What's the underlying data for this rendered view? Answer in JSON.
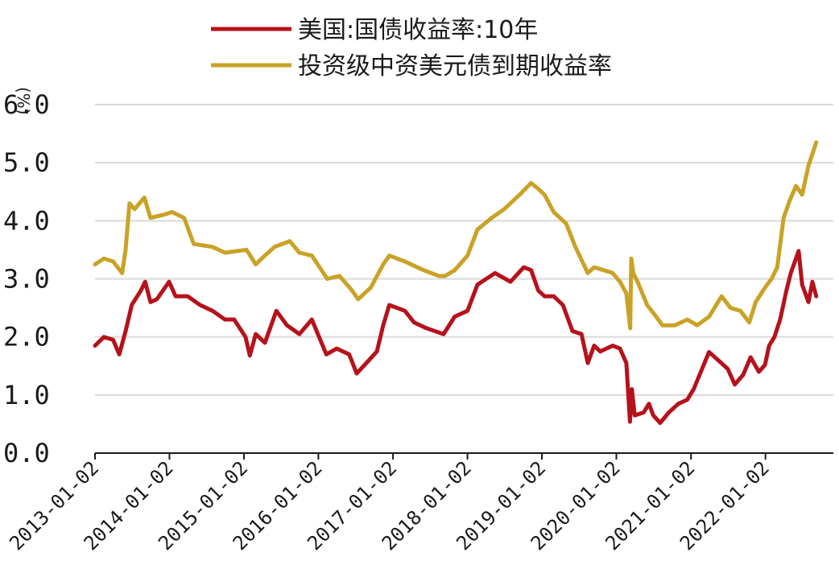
{
  "chart_data": {
    "type": "line",
    "ylabel": "(%)",
    "ylim": [
      0,
      6
    ],
    "y_ticks": [
      "0.0",
      "1.0",
      "2.0",
      "3.0",
      "4.0",
      "5.0",
      "6.0"
    ],
    "x_ticks": [
      "2013-01-02",
      "2014-01-02",
      "2015-01-02",
      "2016-01-02",
      "2017-01-02",
      "2018-01-02",
      "2019-01-02",
      "2020-01-02",
      "2021-01-02",
      "2022-01-02"
    ],
    "grid": "horizontal",
    "legend_position": "top",
    "series": [
      {
        "name": "美国:国债收益率:10年",
        "color": "#b5121b",
        "points": [
          [
            "2013-01-02",
            1.85
          ],
          [
            "2013-02-15",
            2.0
          ],
          [
            "2013-04-01",
            1.95
          ],
          [
            "2013-05-01",
            1.7
          ],
          [
            "2013-06-01",
            2.1
          ],
          [
            "2013-07-01",
            2.55
          ],
          [
            "2013-08-15",
            2.8
          ],
          [
            "2013-09-05",
            2.95
          ],
          [
            "2013-10-01",
            2.6
          ],
          [
            "2013-11-01",
            2.65
          ],
          [
            "2013-12-31",
            2.95
          ],
          [
            "2014-02-01",
            2.7
          ],
          [
            "2014-04-01",
            2.7
          ],
          [
            "2014-06-01",
            2.55
          ],
          [
            "2014-08-01",
            2.45
          ],
          [
            "2014-10-01",
            2.3
          ],
          [
            "2014-11-15",
            2.3
          ],
          [
            "2015-01-10",
            2.0
          ],
          [
            "2015-01-31",
            1.68
          ],
          [
            "2015-03-01",
            2.05
          ],
          [
            "2015-04-15",
            1.9
          ],
          [
            "2015-06-10",
            2.45
          ],
          [
            "2015-08-01",
            2.2
          ],
          [
            "2015-10-01",
            2.05
          ],
          [
            "2015-12-01",
            2.3
          ],
          [
            "2016-02-10",
            1.7
          ],
          [
            "2016-04-01",
            1.8
          ],
          [
            "2016-06-01",
            1.7
          ],
          [
            "2016-07-08",
            1.37
          ],
          [
            "2016-09-01",
            1.58
          ],
          [
            "2016-10-15",
            1.75
          ],
          [
            "2016-11-15",
            2.2
          ],
          [
            "2016-12-15",
            2.55
          ],
          [
            "2017-03-01",
            2.45
          ],
          [
            "2017-04-15",
            2.25
          ],
          [
            "2017-06-15",
            2.15
          ],
          [
            "2017-09-07",
            2.05
          ],
          [
            "2017-11-01",
            2.35
          ],
          [
            "2018-01-02",
            2.45
          ],
          [
            "2018-02-20",
            2.9
          ],
          [
            "2018-05-17",
            3.1
          ],
          [
            "2018-08-01",
            2.95
          ],
          [
            "2018-10-05",
            3.2
          ],
          [
            "2018-11-10",
            3.15
          ],
          [
            "2018-12-15",
            2.8
          ],
          [
            "2019-01-15",
            2.7
          ],
          [
            "2019-03-01",
            2.7
          ],
          [
            "2019-04-15",
            2.55
          ],
          [
            "2019-06-01",
            2.1
          ],
          [
            "2019-07-15",
            2.05
          ],
          [
            "2019-08-15",
            1.55
          ],
          [
            "2019-09-15",
            1.85
          ],
          [
            "2019-10-15",
            1.75
          ],
          [
            "2019-12-15",
            1.85
          ],
          [
            "2020-01-20",
            1.8
          ],
          [
            "2020-02-20",
            1.55
          ],
          [
            "2020-03-09",
            0.54
          ],
          [
            "2020-03-18",
            1.1
          ],
          [
            "2020-04-01",
            0.65
          ],
          [
            "2020-05-15",
            0.7
          ],
          [
            "2020-06-10",
            0.85
          ],
          [
            "2020-07-01",
            0.65
          ],
          [
            "2020-08-04",
            0.52
          ],
          [
            "2020-09-15",
            0.7
          ],
          [
            "2020-11-01",
            0.85
          ],
          [
            "2020-12-15",
            0.92
          ],
          [
            "2021-01-15",
            1.1
          ],
          [
            "2021-02-25",
            1.45
          ],
          [
            "2021-03-31",
            1.74
          ],
          [
            "2021-05-15",
            1.6
          ],
          [
            "2021-07-01",
            1.45
          ],
          [
            "2021-08-05",
            1.18
          ],
          [
            "2021-09-15",
            1.35
          ],
          [
            "2021-10-21",
            1.65
          ],
          [
            "2021-12-01",
            1.4
          ],
          [
            "2021-12-31",
            1.52
          ],
          [
            "2022-01-20",
            1.85
          ],
          [
            "2022-02-15",
            2.0
          ],
          [
            "2022-03-15",
            2.3
          ],
          [
            "2022-04-15",
            2.8
          ],
          [
            "2022-05-06",
            3.1
          ],
          [
            "2022-06-14",
            3.48
          ],
          [
            "2022-07-01",
            2.9
          ],
          [
            "2022-08-01",
            2.6
          ],
          [
            "2022-08-20",
            2.95
          ],
          [
            "2022-09-08",
            2.7
          ]
        ]
      },
      {
        "name": "投资级中资美元债到期收益率",
        "color": "#c9a227",
        "points": [
          [
            "2013-01-02",
            3.25
          ],
          [
            "2013-02-15",
            3.35
          ],
          [
            "2013-04-01",
            3.3
          ],
          [
            "2013-05-15",
            3.1
          ],
          [
            "2013-06-01",
            3.5
          ],
          [
            "2013-06-20",
            4.3
          ],
          [
            "2013-07-15",
            4.2
          ],
          [
            "2013-09-01",
            4.4
          ],
          [
            "2013-10-01",
            4.05
          ],
          [
            "2013-12-01",
            4.1
          ],
          [
            "2014-01-15",
            4.15
          ],
          [
            "2014-03-15",
            4.05
          ],
          [
            "2014-05-01",
            3.6
          ],
          [
            "2014-08-01",
            3.55
          ],
          [
            "2014-10-01",
            3.45
          ],
          [
            "2015-01-15",
            3.5
          ],
          [
            "2015-03-01",
            3.25
          ],
          [
            "2015-04-15",
            3.4
          ],
          [
            "2015-06-01",
            3.55
          ],
          [
            "2015-08-15",
            3.65
          ],
          [
            "2015-10-01",
            3.45
          ],
          [
            "2015-12-01",
            3.4
          ],
          [
            "2016-02-15",
            3.0
          ],
          [
            "2016-04-15",
            3.05
          ],
          [
            "2016-06-15",
            2.8
          ],
          [
            "2016-07-15",
            2.65
          ],
          [
            "2016-09-15",
            2.85
          ],
          [
            "2016-11-15",
            3.25
          ],
          [
            "2016-12-15",
            3.4
          ],
          [
            "2017-03-01",
            3.3
          ],
          [
            "2017-06-01",
            3.15
          ],
          [
            "2017-08-15",
            3.05
          ],
          [
            "2017-09-15",
            3.05
          ],
          [
            "2017-11-01",
            3.15
          ],
          [
            "2018-01-02",
            3.4
          ],
          [
            "2018-02-20",
            3.85
          ],
          [
            "2018-05-01",
            4.05
          ],
          [
            "2018-07-01",
            4.2
          ],
          [
            "2018-09-15",
            4.45
          ],
          [
            "2018-11-10",
            4.65
          ],
          [
            "2018-12-15",
            4.55
          ],
          [
            "2019-01-15",
            4.45
          ],
          [
            "2019-03-01",
            4.15
          ],
          [
            "2019-05-01",
            3.95
          ],
          [
            "2019-06-15",
            3.55
          ],
          [
            "2019-08-15",
            3.1
          ],
          [
            "2019-09-15",
            3.2
          ],
          [
            "2019-11-01",
            3.15
          ],
          [
            "2019-12-15",
            3.1
          ],
          [
            "2020-01-20",
            2.95
          ],
          [
            "2020-02-20",
            2.75
          ],
          [
            "2020-03-10",
            2.15
          ],
          [
            "2020-03-15",
            3.35
          ],
          [
            "2020-03-25",
            3.1
          ],
          [
            "2020-04-15",
            2.95
          ],
          [
            "2020-06-01",
            2.55
          ],
          [
            "2020-07-15",
            2.35
          ],
          [
            "2020-08-15",
            2.2
          ],
          [
            "2020-10-15",
            2.2
          ],
          [
            "2020-12-15",
            2.3
          ],
          [
            "2021-02-01",
            2.2
          ],
          [
            "2021-04-01",
            2.35
          ],
          [
            "2021-06-01",
            2.7
          ],
          [
            "2021-07-15",
            2.5
          ],
          [
            "2021-09-01",
            2.45
          ],
          [
            "2021-10-15",
            2.25
          ],
          [
            "2021-11-15",
            2.6
          ],
          [
            "2021-12-31",
            2.85
          ],
          [
            "2022-02-01",
            3.0
          ],
          [
            "2022-03-01",
            3.2
          ],
          [
            "2022-04-01",
            4.05
          ],
          [
            "2022-05-01",
            4.35
          ],
          [
            "2022-06-01",
            4.6
          ],
          [
            "2022-07-01",
            4.45
          ],
          [
            "2022-08-01",
            4.95
          ],
          [
            "2022-08-25",
            5.2
          ],
          [
            "2022-09-08",
            5.35
          ]
        ]
      }
    ]
  }
}
